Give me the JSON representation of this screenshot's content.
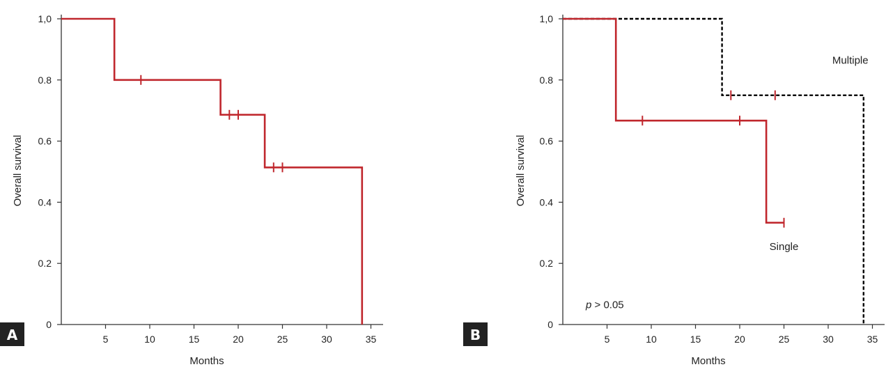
{
  "colors": {
    "red_series": "#c0272d",
    "black_series": "#000000",
    "axis": "#333333",
    "panel_badge": "#222222"
  },
  "chart_data": [
    {
      "panel": "A",
      "type": "line",
      "step": true,
      "title": "",
      "xlabel": "Months",
      "ylabel": "Overall survival",
      "xlim": [
        0,
        36
      ],
      "ylim": [
        0,
        1.0
      ],
      "xticks": [
        5,
        10,
        15,
        20,
        25,
        30,
        35
      ],
      "xtick_labels": [
        "5",
        "10",
        "15",
        "20",
        "25",
        "30",
        "35"
      ],
      "yticks": [
        0,
        0.2,
        0.4,
        0.6,
        0.8,
        1.0
      ],
      "ytick_labels": [
        "0",
        "0.2",
        "0.4",
        "0.6",
        "0.8",
        "1,0"
      ],
      "grid": false,
      "series": [
        {
          "color": "#c0272d",
          "dash": false,
          "x": [
            0,
            6,
            6,
            18,
            18,
            23,
            23,
            34,
            34
          ],
          "y": [
            1.0,
            1.0,
            0.8,
            0.8,
            0.686,
            0.686,
            0.514,
            0.514,
            0
          ],
          "censor_x": [
            9,
            19,
            20,
            24,
            25
          ],
          "censor_y": [
            0.8,
            0.686,
            0.686,
            0.514,
            0.514
          ]
        }
      ],
      "annotations": []
    },
    {
      "panel": "B",
      "type": "line",
      "step": true,
      "title": "",
      "xlabel": "Months",
      "ylabel": "Overall survival",
      "xlim": [
        0,
        36
      ],
      "ylim": [
        0,
        1.0
      ],
      "xticks": [
        5,
        10,
        15,
        20,
        25,
        30,
        35
      ],
      "xtick_labels": [
        "5",
        "10",
        "15",
        "20",
        "25",
        "30",
        "35"
      ],
      "yticks": [
        0,
        0.2,
        0.4,
        0.6,
        0.8,
        1.0
      ],
      "ytick_labels": [
        "0",
        "0.2",
        "0.4",
        "0.6",
        "0.8",
        "1,0"
      ],
      "grid": false,
      "series": [
        {
          "name": "Multiple",
          "color": "#000000",
          "dash": true,
          "x": [
            0,
            18,
            18,
            34,
            34
          ],
          "y": [
            1.0,
            1.0,
            0.75,
            0.75,
            0
          ],
          "censor_x": [
            19,
            24
          ],
          "censor_y": [
            0.75,
            0.75
          ]
        },
        {
          "name": "Single",
          "color": "#c0272d",
          "dash": false,
          "x": [
            0,
            6,
            6,
            23,
            23,
            25
          ],
          "y": [
            1.0,
            1.0,
            0.667,
            0.667,
            0.333,
            0.333
          ],
          "censor_x": [
            9,
            20,
            25
          ],
          "censor_y": [
            0.667,
            0.667,
            0.333
          ]
        }
      ],
      "annotations": [
        {
          "text": "Multiple",
          "x": 32.5,
          "y": 0.865
        },
        {
          "text": "Single",
          "x": 25,
          "y": 0.255
        },
        {
          "text": "p > 0.05",
          "x": 2.6,
          "y": 0.065,
          "italic_prefix": "p"
        }
      ]
    }
  ]
}
